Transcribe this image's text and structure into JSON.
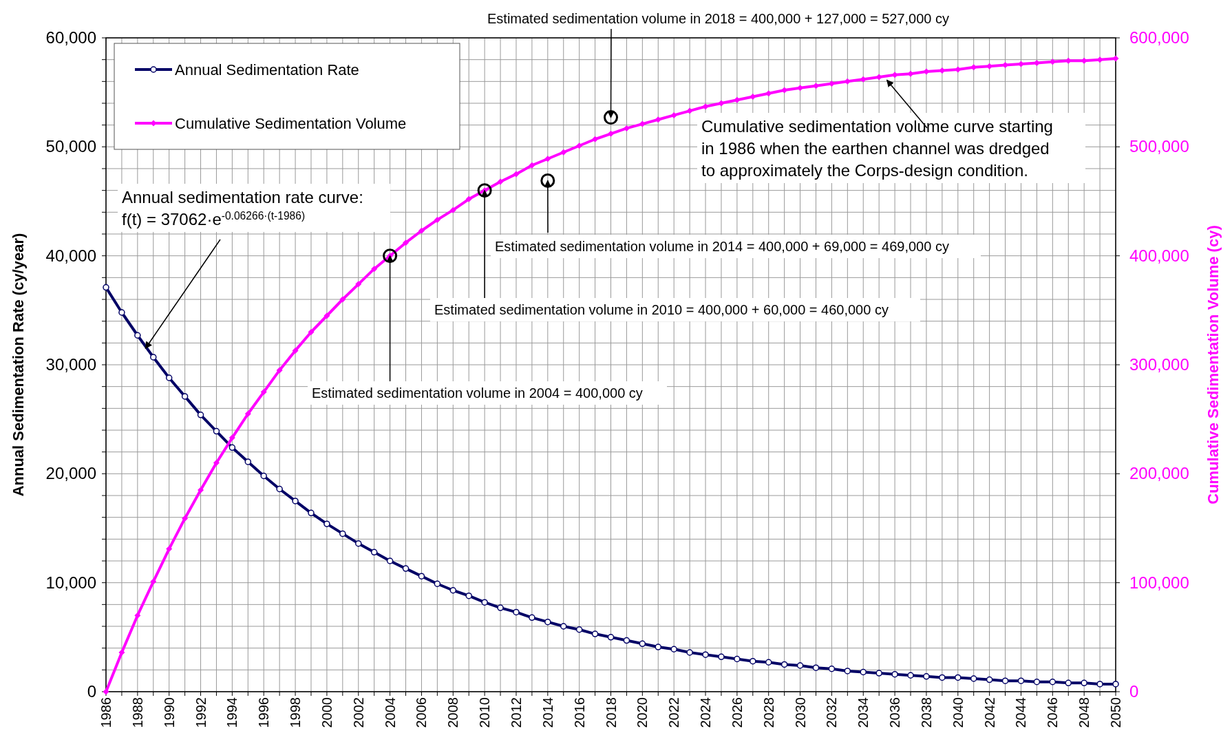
{
  "chart_data": {
    "type": "line",
    "ylabel": "Annual Sedimentation Rate (cy/year)",
    "y2label": "Cumulative Sedimentation Volume (cy)",
    "x": [
      1986,
      1987,
      1988,
      1989,
      1990,
      1991,
      1992,
      1993,
      1994,
      1995,
      1996,
      1997,
      1998,
      1999,
      2000,
      2001,
      2002,
      2003,
      2004,
      2005,
      2006,
      2007,
      2008,
      2009,
      2010,
      2011,
      2012,
      2013,
      2014,
      2015,
      2016,
      2017,
      2018,
      2019,
      2020,
      2021,
      2022,
      2023,
      2024,
      2025,
      2026,
      2027,
      2028,
      2029,
      2030,
      2031,
      2032,
      2033,
      2034,
      2035,
      2036,
      2037,
      2038,
      2039,
      2040,
      2041,
      2042,
      2043,
      2044,
      2045,
      2046,
      2047,
      2048,
      2049,
      2050
    ],
    "series": [
      {
        "name": "Annual Sedimentation Rate",
        "color": "#000066",
        "marker": "circle",
        "values": [
          37100,
          34800,
          32700,
          30700,
          28800,
          27100,
          25400,
          23900,
          22400,
          21100,
          19800,
          18600,
          17500,
          16400,
          15400,
          14500,
          13600,
          12800,
          12000,
          11300,
          10600,
          9900,
          9300,
          8800,
          8200,
          7700,
          7300,
          6800,
          6400,
          6000,
          5700,
          5300,
          5000,
          4700,
          4400,
          4100,
          3900,
          3600,
          3400,
          3200,
          3000,
          2800,
          2700,
          2500,
          2400,
          2200,
          2100,
          1900,
          1800,
          1700,
          1600,
          1500,
          1400,
          1300,
          1300,
          1200,
          1100,
          1000,
          1000,
          900,
          900,
          800,
          800,
          700,
          700
        ]
      },
      {
        "name": "Cumulative Sedimentation Volume",
        "color": "#ff00ff",
        "marker": "diamond",
        "axis": "y2",
        "values": [
          0,
          36000,
          70000,
          101000,
          131000,
          159000,
          185000,
          210000,
          233000,
          255000,
          275000,
          295000,
          313000,
          330000,
          345000,
          360000,
          374000,
          388000,
          400000,
          412000,
          423000,
          433000,
          442000,
          452000,
          460000,
          468000,
          475000,
          483000,
          489000,
          495000,
          501000,
          507000,
          512000,
          517000,
          521000,
          525000,
          529000,
          533000,
          537000,
          540000,
          543000,
          546000,
          549000,
          552000,
          554000,
          556000,
          558000,
          560000,
          562000,
          564000,
          566000,
          567000,
          569000,
          570000,
          571000,
          573000,
          574000,
          575000,
          576000,
          577000,
          578000,
          579000,
          579000,
          580000,
          581000
        ]
      },
      {
        "type": "scatter",
        "color": "#000000",
        "marker": "circle",
        "axis": "y2",
        "x": [
          2004,
          2010,
          2014,
          2018
        ],
        "values": [
          400000,
          460000,
          469000,
          527000
        ]
      }
    ],
    "xlim": [
      1986,
      2050
    ],
    "xticks": [
      1986,
      {
        "value": 1987,
        "label": null
      },
      1988,
      {
        "value": 1989,
        "label": null
      },
      1990,
      {
        "value": 1991,
        "label": null
      },
      1992,
      {
        "value": 1993,
        "label": null
      },
      1994,
      {
        "value": 1995,
        "label": null
      },
      1996,
      {
        "value": 1997,
        "label": null
      },
      1998,
      {
        "value": 1999,
        "label": null
      },
      2000,
      {
        "value": 2001,
        "label": null
      },
      2002,
      {
        "value": 2003,
        "label": null
      },
      2004,
      {
        "value": 2005,
        "label": null
      },
      2006,
      {
        "value": 2007,
        "label": null
      },
      2008,
      {
        "value": 2009,
        "label": null
      },
      2010,
      {
        "value": 2011,
        "label": null
      },
      2012,
      {
        "value": 2013,
        "label": null
      },
      2014,
      {
        "value": 2015,
        "label": null
      },
      2016,
      {
        "value": 2017,
        "label": null
      },
      2018,
      {
        "value": 2019,
        "label": null
      },
      2020,
      {
        "value": 2021,
        "label": null
      },
      2022,
      {
        "value": 2023,
        "label": null
      },
      2024,
      {
        "value": 2025,
        "label": null
      },
      2026,
      {
        "value": 2027,
        "label": null
      },
      2028,
      {
        "value": 2029,
        "label": null
      },
      2030,
      {
        "value": 2031,
        "label": null
      },
      2032,
      {
        "value": 2033,
        "label": null
      },
      2034,
      {
        "value": 2035,
        "label": null
      },
      2036,
      {
        "value": 2037,
        "label": null
      },
      2038,
      {
        "value": 2039,
        "label": null
      },
      2040,
      {
        "value": 2041,
        "label": null
      },
      2042,
      {
        "value": 2043,
        "label": null
      },
      2044,
      {
        "value": 2045,
        "label": null
      },
      2046,
      {
        "value": 2047,
        "label": null
      },
      2048,
      {
        "value": 2049,
        "label": null
      },
      2050
    ],
    "ylim": [
      0,
      60000
    ],
    "yticks": [
      {
        "value": 0,
        "label": "0"
      },
      {
        "value": 2000,
        "label": null
      },
      {
        "value": 4000,
        "label": null
      },
      {
        "value": 6000,
        "label": null
      },
      {
        "value": 8000,
        "label": null
      },
      {
        "value": 10000,
        "label": "10,000"
      },
      {
        "value": 12000,
        "label": null
      },
      {
        "value": 14000,
        "label": null
      },
      {
        "value": 16000,
        "label": null
      },
      {
        "value": 18000,
        "label": null
      },
      {
        "value": 20000,
        "label": "20,000"
      },
      {
        "value": 22000,
        "label": null
      },
      {
        "value": 24000,
        "label": null
      },
      {
        "value": 26000,
        "label": null
      },
      {
        "value": 28000,
        "label": null
      },
      {
        "value": 30000,
        "label": "30,000"
      },
      {
        "value": 32000,
        "label": null
      },
      {
        "value": 34000,
        "label": null
      },
      {
        "value": 36000,
        "label": null
      },
      {
        "value": 38000,
        "label": null
      },
      {
        "value": 40000,
        "label": "40,000"
      },
      {
        "value": 42000,
        "label": null
      },
      {
        "value": 44000,
        "label": null
      },
      {
        "value": 46000,
        "label": null
      },
      {
        "value": 48000,
        "label": null
      },
      {
        "value": 50000,
        "label": "50,000"
      },
      {
        "value": 52000,
        "label": null
      },
      {
        "value": 54000,
        "label": null
      },
      {
        "value": 56000,
        "label": null
      },
      {
        "value": 58000,
        "label": null
      },
      {
        "value": 60000,
        "label": "60,000"
      }
    ],
    "y2lim": [
      0,
      600000
    ],
    "y2ticks": [
      {
        "value": 0,
        "label": "0"
      },
      {
        "value": 100000,
        "label": "100,000"
      },
      {
        "value": 200000,
        "label": "200,000"
      },
      {
        "value": 300000,
        "label": "300,000"
      },
      {
        "value": 400000,
        "label": "400,000"
      },
      {
        "value": 500000,
        "label": "500,000"
      },
      {
        "value": 600000,
        "label": "600,000"
      }
    ],
    "grid": true,
    "legend": "top left",
    "annotations": [
      {
        "text": "Estimated sedimentation volume in 2018 = 400,000 + 127,000 = 527,000 cy",
        "x": 2018,
        "y": 52700
      },
      {
        "text": "Cumulative sedimentation volume curve starting\nin 1986 when the earthen channel was dredged\nto approximately the Corps-design condition.",
        "x": 2035.5,
        "y": 56500
      },
      {
        "text": "Estimated sedimentation volume in 2014 = 400,000 + 69,000 = 469,000 cy",
        "x": 2014,
        "y": 46900
      },
      {
        "text": "Estimated sedimentation volume in 2010 = 400,000 + 60,000 = 460,000 cy",
        "x": 2010,
        "y": 46000
      },
      {
        "text": "Estimated sedimentation volume in 2004 = 400,000 cy",
        "x": 2004,
        "y": 40000
      },
      {
        "text": "Annual sedimentation rate curve:\nf(t) = 37062·e$^{-0.06266·(t-1986)}$",
        "x": 1988.5,
        "y": 31500
      }
    ]
  }
}
